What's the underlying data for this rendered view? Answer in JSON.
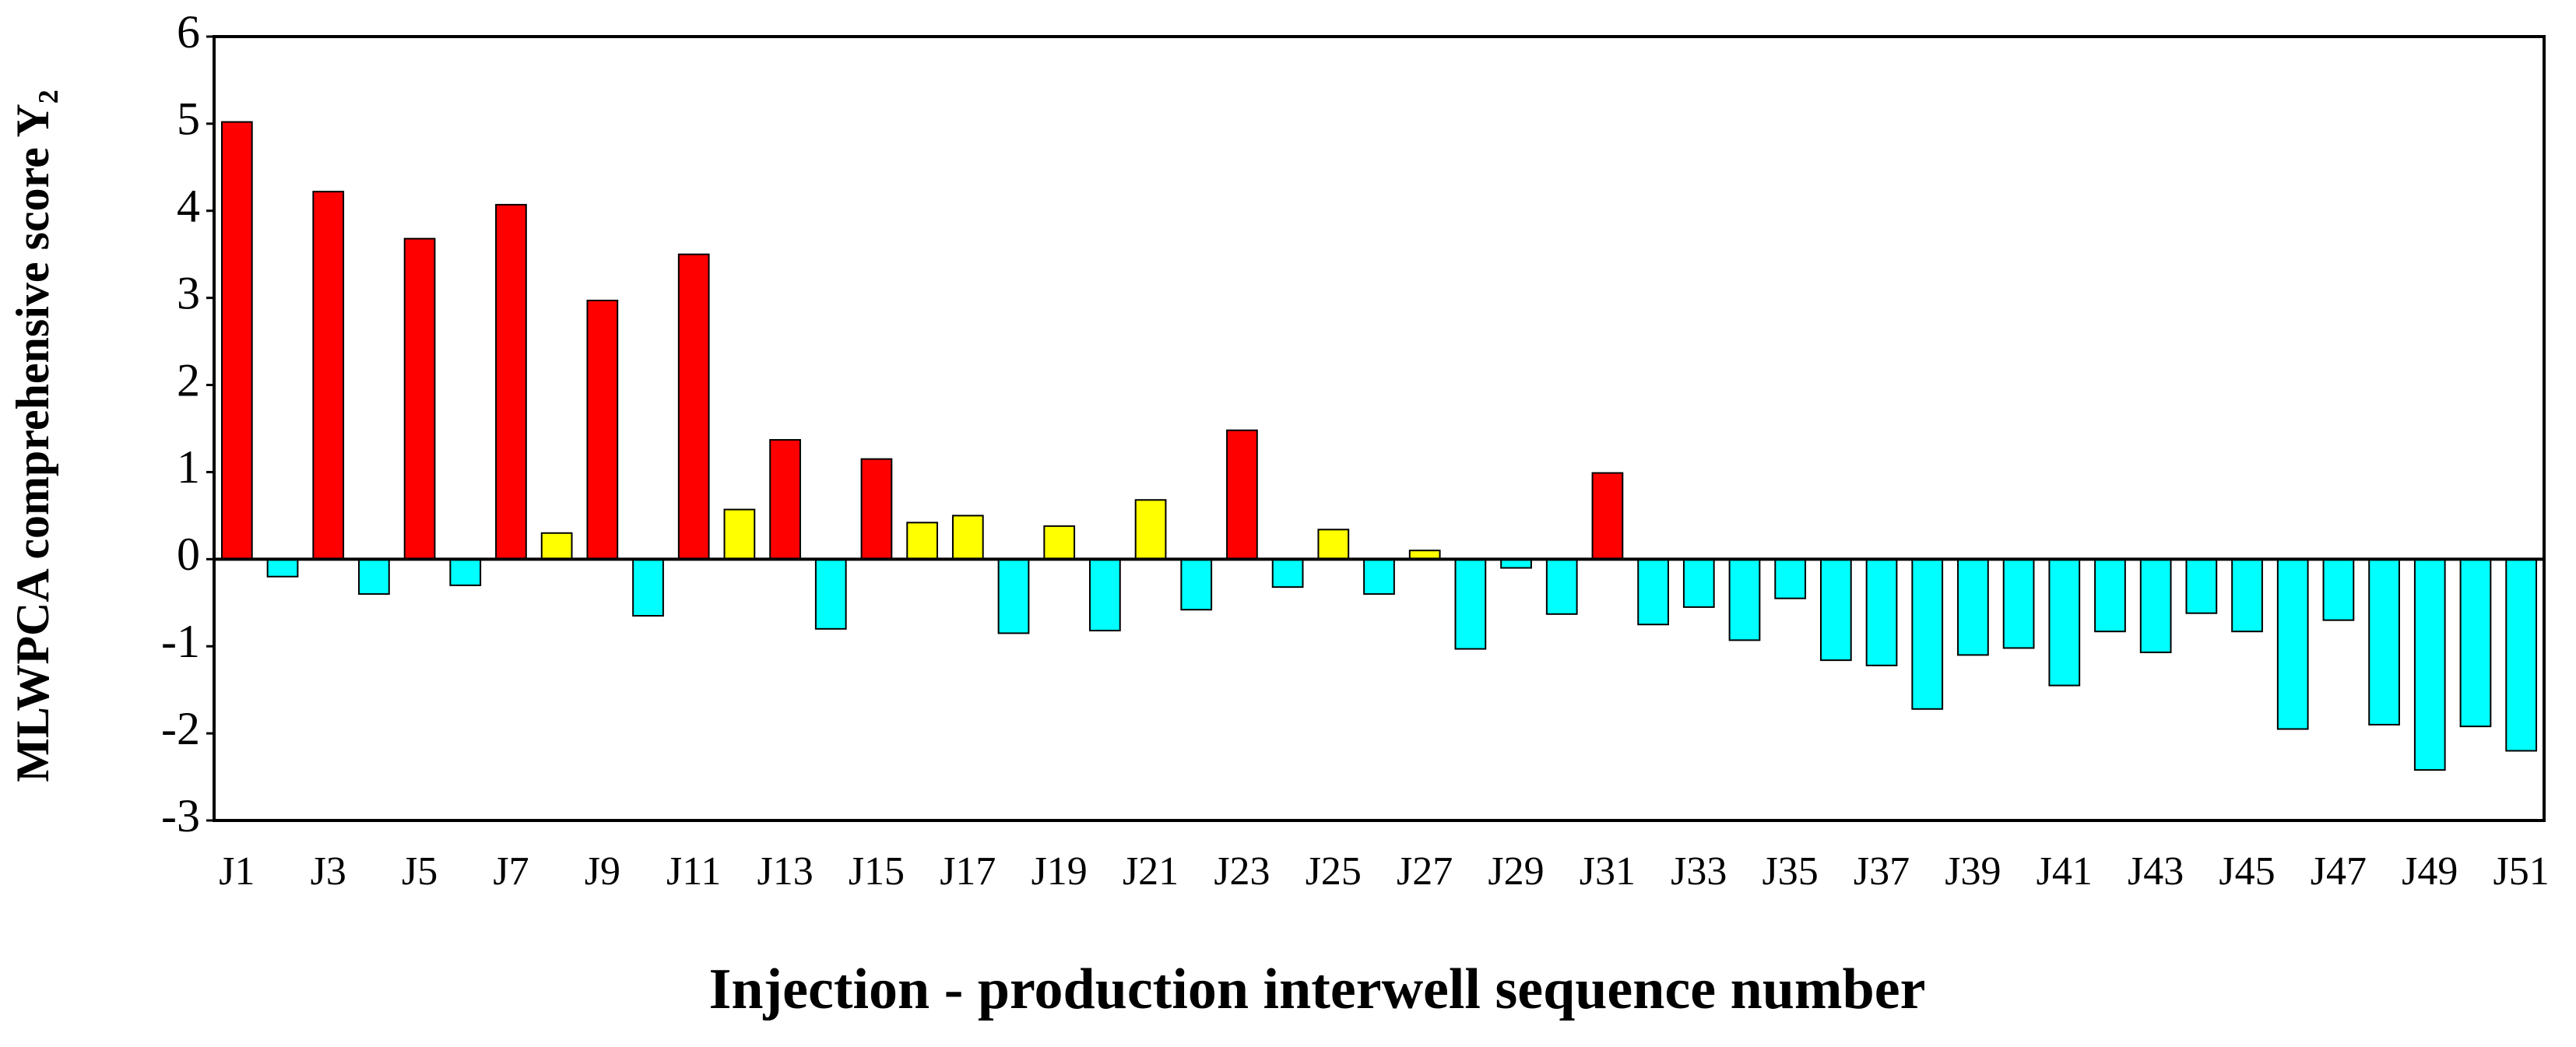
{
  "chart_data": {
    "type": "bar",
    "x_label": "Injection - production interwell sequence number",
    "y_label": "MLWPCA comprehensive score Y₂",
    "categories": [
      "J1",
      null,
      "J3",
      null,
      "J5",
      null,
      "J7",
      null,
      "J9",
      null,
      "J11",
      null,
      "J13",
      null,
      "J15",
      null,
      "J17",
      null,
      "J19",
      null,
      "J21",
      null,
      "J23",
      null,
      "J25",
      null,
      "J27",
      null,
      "J29",
      null,
      "J31",
      null,
      "J33",
      null,
      "J35",
      null,
      "J37",
      null,
      "J39",
      null,
      "J41",
      null,
      "J43",
      null,
      "J45",
      null,
      "J47",
      null,
      "J49",
      null,
      "J51"
    ],
    "values": [
      5.02,
      -0.2,
      4.22,
      -0.4,
      3.68,
      -0.3,
      4.07,
      0.3,
      2.97,
      -0.65,
      3.5,
      0.57,
      1.37,
      -0.8,
      1.15,
      0.42,
      0.5,
      -0.85,
      0.38,
      -0.82,
      0.68,
      -0.58,
      1.48,
      -0.32,
      0.34,
      -0.4,
      0.1,
      -1.03,
      -0.1,
      -0.63,
      0.99,
      -0.75,
      -0.55,
      -0.93,
      -0.45,
      -1.16,
      -1.22,
      -1.72,
      -1.1,
      -1.02,
      -1.45,
      -0.83,
      -1.07,
      -0.62,
      -0.83,
      -1.95,
      -0.7,
      -1.9,
      -2.42,
      -1.92,
      -2.2
    ],
    "colors": [
      "#ff0000",
      "#00ffff",
      "#ff0000",
      "#00ffff",
      "#ff0000",
      "#00ffff",
      "#ff0000",
      "#ffff00",
      "#ff0000",
      "#00ffff",
      "#ff0000",
      "#ffff00",
      "#ff0000",
      "#00ffff",
      "#ff0000",
      "#ffff00",
      "#ffff00",
      "#00ffff",
      "#ffff00",
      "#00ffff",
      "#ffff00",
      "#00ffff",
      "#ff0000",
      "#00ffff",
      "#ffff00",
      "#00ffff",
      "#ffff00",
      "#00ffff",
      "#00ffff",
      "#00ffff",
      "#ff0000",
      "#00ffff",
      "#00ffff",
      "#00ffff",
      "#00ffff",
      "#00ffff",
      "#00ffff",
      "#00ffff",
      "#00ffff",
      "#00ffff",
      "#00ffff",
      "#00ffff",
      "#00ffff",
      "#00ffff",
      "#00ffff",
      "#00ffff",
      "#00ffff",
      "#00ffff",
      "#00ffff",
      "#00ffff",
      "#00ffff"
    ],
    "ylim": [
      -3,
      6
    ],
    "yticks": [
      -3,
      -2,
      -1,
      0,
      1,
      2,
      3,
      4,
      5,
      6
    ],
    "grid": false
  }
}
